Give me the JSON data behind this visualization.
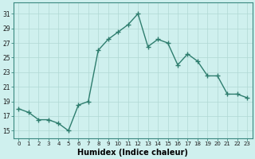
{
  "x": [
    0,
    1,
    2,
    3,
    4,
    5,
    6,
    7,
    8,
    9,
    10,
    11,
    12,
    13,
    14,
    15,
    16,
    17,
    18,
    19,
    20,
    21,
    22,
    23
  ],
  "y": [
    18.0,
    17.5,
    16.5,
    16.5,
    16.0,
    15.0,
    18.5,
    19.0,
    26.0,
    27.5,
    28.5,
    29.5,
    31.0,
    26.5,
    27.5,
    27.0,
    24.0,
    25.5,
    24.5,
    22.5,
    22.5,
    20.0,
    20.0,
    19.5
  ],
  "line_color": "#2e7d6e",
  "marker": "+",
  "marker_size": 4,
  "line_width": 1.0,
  "bg_color": "#cff0ee",
  "grid_color": "#b0d8d4",
  "xlabel": "Humidex (Indice chaleur)",
  "xlabel_fontsize": 7,
  "ylabel_ticks": [
    15,
    17,
    19,
    21,
    23,
    25,
    27,
    29,
    31
  ],
  "xtick_labels": [
    "0",
    "1",
    "2",
    "3",
    "4",
    "5",
    "6",
    "7",
    "8",
    "9",
    "10",
    "11",
    "12",
    "13",
    "14",
    "15",
    "16",
    "17",
    "18",
    "19",
    "20",
    "21",
    "22",
    "23"
  ],
  "ylim": [
    14.0,
    32.5
  ],
  "xlim": [
    -0.5,
    23.5
  ],
  "ytick_fontsize": 5.5,
  "xtick_fontsize": 5.0
}
